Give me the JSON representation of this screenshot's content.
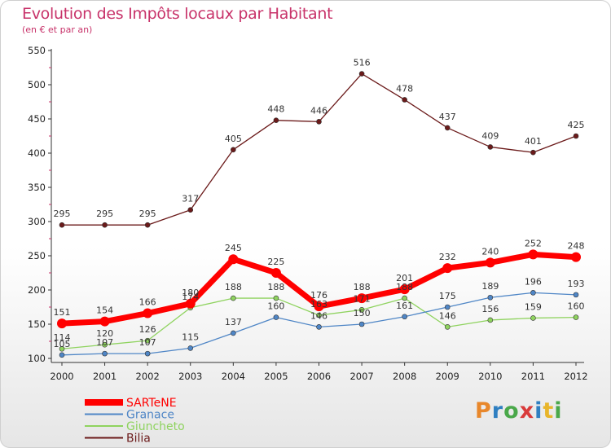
{
  "chart_data": {
    "type": "line",
    "title": "Evolution des Impôts locaux par Habitant",
    "subtitle": "(en € et par an)",
    "x": [
      "2000",
      "2001",
      "2002",
      "2003",
      "2004",
      "2005",
      "2006",
      "2007",
      "2008",
      "2009",
      "2010",
      "2011",
      "2012"
    ],
    "ylim": [
      100,
      550
    ],
    "yticks": [
      100,
      150,
      200,
      250,
      300,
      350,
      400,
      450,
      500,
      550
    ],
    "grid": false,
    "legend_position": "bottom-left",
    "series": [
      {
        "name": "SARTeNE",
        "color": "#ff0000",
        "values": [
          151,
          154,
          166,
          180,
          245,
          225,
          176,
          188,
          201,
          232,
          240,
          252,
          248
        ]
      },
      {
        "name": "Granace",
        "color": "#4f86c6",
        "values": [
          105,
          107,
          107,
          115,
          137,
          160,
          146,
          150,
          161,
          175,
          189,
          196,
          193
        ]
      },
      {
        "name": "Giuncheto",
        "color": "#8fd35f",
        "values": [
          114,
          120,
          126,
          174,
          188,
          188,
          163,
          171,
          188,
          146,
          156,
          159,
          160
        ]
      },
      {
        "name": "Bilia",
        "color": "#6b1a1a",
        "values": [
          295,
          295,
          295,
          317,
          405,
          448,
          446,
          516,
          478,
          437,
          409,
          401,
          425
        ]
      }
    ]
  }
}
